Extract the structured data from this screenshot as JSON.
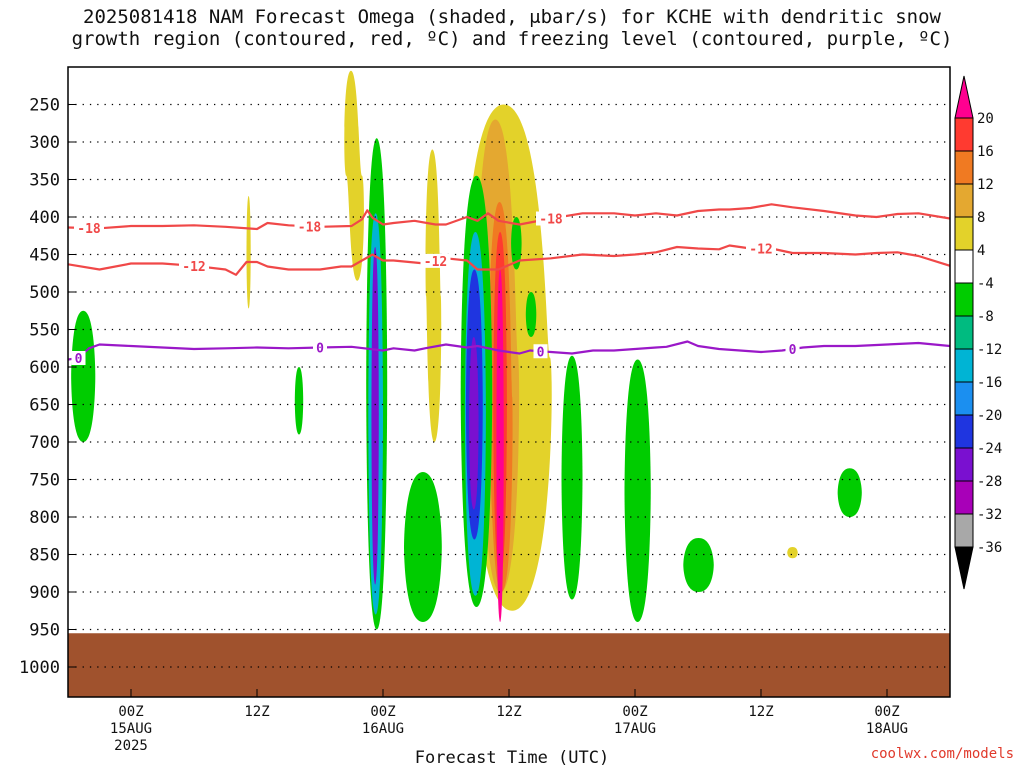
{
  "title_line1": "2025081418 NAM Forecast Omega (shaded, μbar/s) for KCHE with dendritic snow",
  "title_line2": "growth region (contoured, red, ºC) and freezing level (contoured, purple, ºC)",
  "credit": "coolwx.com/models",
  "chart_data": {
    "type": "time-height contour",
    "xlabel": "Forecast Time (UTC)",
    "ylabel": "",
    "x_ticks": [
      {
        "hour": 6,
        "l1": "00Z",
        "l2": "15AUG",
        "l3": "2025"
      },
      {
        "hour": 18,
        "l1": "12Z",
        "l2": "",
        "l3": ""
      },
      {
        "hour": 30,
        "l1": "00Z",
        "l2": "16AUG",
        "l3": ""
      },
      {
        "hour": 42,
        "l1": "12Z",
        "l2": "",
        "l3": ""
      },
      {
        "hour": 54,
        "l1": "00Z",
        "l2": "17AUG",
        "l3": ""
      },
      {
        "hour": 66,
        "l1": "12Z",
        "l2": "",
        "l3": ""
      },
      {
        "hour": 78,
        "l1": "00Z",
        "l2": "18AUG",
        "l3": ""
      }
    ],
    "xlim": [
      0,
      84
    ],
    "y_ticks": [
      250,
      300,
      350,
      400,
      450,
      500,
      550,
      600,
      650,
      700,
      750,
      800,
      850,
      900,
      950,
      1000
    ],
    "ylim": [
      200,
      1040
    ],
    "ground_level_hpa": 955,
    "colorbar": {
      "labels": [
        "20",
        "16",
        "12",
        "8",
        "4",
        "-4",
        "-8",
        "-12",
        "-16",
        "-20",
        "-24",
        "-28",
        "-32",
        "-36"
      ],
      "colors": [
        "#ff0090",
        "#ff3a30",
        "#f07a22",
        "#e4a830",
        "#e3d22a",
        "#ffffff",
        "#00cc00",
        "#00bb80",
        "#00b4d4",
        "#1b8ff0",
        "#1f35e0",
        "#7a10d0",
        "#a800b8",
        "#a8a8a8",
        "#000000"
      ]
    },
    "contours": [
      {
        "label": "-18",
        "color": "#f04848",
        "label_hours": [
          2,
          23,
          46
        ],
        "points": [
          [
            0,
            414
          ],
          [
            3,
            415
          ],
          [
            6,
            412
          ],
          [
            9,
            412
          ],
          [
            12,
            411
          ],
          [
            15,
            413
          ],
          [
            18,
            416
          ],
          [
            19,
            408
          ],
          [
            21,
            411
          ],
          [
            24,
            413
          ],
          [
            27,
            412
          ],
          [
            28,
            403
          ],
          [
            28.5,
            391
          ],
          [
            29,
            401
          ],
          [
            30,
            410
          ],
          [
            31,
            408
          ],
          [
            33,
            405
          ],
          [
            35,
            410
          ],
          [
            36,
            410
          ],
          [
            38,
            400
          ],
          [
            39,
            405
          ],
          [
            40,
            395
          ],
          [
            41,
            405
          ],
          [
            43,
            410
          ],
          [
            46,
            402
          ],
          [
            49,
            395
          ],
          [
            52,
            395
          ],
          [
            54,
            398
          ],
          [
            56,
            395
          ],
          [
            58,
            398
          ],
          [
            60,
            392
          ],
          [
            62,
            390
          ],
          [
            63,
            390
          ],
          [
            65,
            388
          ],
          [
            67,
            383
          ],
          [
            69,
            387
          ],
          [
            72,
            392
          ],
          [
            75,
            398
          ],
          [
            77,
            400
          ],
          [
            79,
            396
          ],
          [
            81,
            395
          ],
          [
            84,
            402
          ]
        ]
      },
      {
        "label": "-12",
        "color": "#f04848",
        "label_hours": [
          12,
          35,
          66
        ],
        "points": [
          [
            0,
            463
          ],
          [
            3,
            470
          ],
          [
            6,
            462
          ],
          [
            9,
            462
          ],
          [
            12,
            465
          ],
          [
            15,
            470
          ],
          [
            16,
            477
          ],
          [
            17,
            460
          ],
          [
            18,
            460
          ],
          [
            19,
            466
          ],
          [
            21,
            470
          ],
          [
            24,
            470
          ],
          [
            26,
            466
          ],
          [
            27,
            466
          ],
          [
            28,
            458
          ],
          [
            29,
            450
          ],
          [
            30,
            458
          ],
          [
            31,
            458
          ],
          [
            34,
            462
          ],
          [
            36,
            455
          ],
          [
            38,
            458
          ],
          [
            39,
            470
          ],
          [
            41,
            470
          ],
          [
            43,
            458
          ],
          [
            46,
            455
          ],
          [
            49,
            450
          ],
          [
            52,
            452
          ],
          [
            54,
            450
          ],
          [
            56,
            447
          ],
          [
            58,
            440
          ],
          [
            60,
            442
          ],
          [
            62,
            443
          ],
          [
            63,
            438
          ],
          [
            65,
            442
          ],
          [
            67,
            442
          ],
          [
            69,
            448
          ],
          [
            72,
            448
          ],
          [
            75,
            450
          ],
          [
            77,
            448
          ],
          [
            79,
            447
          ],
          [
            81,
            452
          ],
          [
            84,
            465
          ]
        ]
      },
      {
        "label": "0",
        "color": "#9a18c8",
        "label_hours": [
          1,
          24,
          45,
          69
        ],
        "points": [
          [
            0,
            590
          ],
          [
            1,
            588
          ],
          [
            2,
            575
          ],
          [
            3,
            570
          ],
          [
            6,
            572
          ],
          [
            9,
            574
          ],
          [
            12,
            576
          ],
          [
            15,
            575
          ],
          [
            18,
            574
          ],
          [
            21,
            575
          ],
          [
            24,
            574
          ],
          [
            27,
            573
          ],
          [
            30,
            578
          ],
          [
            31,
            575
          ],
          [
            33,
            578
          ],
          [
            34,
            575
          ],
          [
            36,
            570
          ],
          [
            38,
            574
          ],
          [
            39,
            572
          ],
          [
            41,
            578
          ],
          [
            43,
            582
          ],
          [
            44,
            578
          ],
          [
            46,
            580
          ],
          [
            48,
            582
          ],
          [
            50,
            578
          ],
          [
            52,
            578
          ],
          [
            54,
            576
          ],
          [
            56,
            574
          ],
          [
            57,
            573
          ],
          [
            59,
            566
          ],
          [
            60,
            572
          ],
          [
            62,
            576
          ],
          [
            64,
            578
          ],
          [
            66,
            580
          ],
          [
            68,
            578
          ],
          [
            70,
            574
          ],
          [
            72,
            572
          ],
          [
            75,
            572
          ],
          [
            78,
            570
          ],
          [
            81,
            568
          ],
          [
            84,
            572
          ]
        ]
      }
    ],
    "shaded_regions": [
      {
        "value": "4",
        "x0": 26.2,
        "x1": 27.7,
        "p0": 205,
        "p1": 485,
        "tilt": 0.6
      },
      {
        "value": "4",
        "x0": 17.0,
        "x1": 17.4,
        "p0": 372,
        "p1": 522,
        "tilt": 0
      },
      {
        "value": "4",
        "x0": 34.0,
        "x1": 35.4,
        "p0": 310,
        "p1": 700,
        "tilt": 0.2
      },
      {
        "value": "4",
        "x0": 37.5,
        "x1": 45.5,
        "p0": 250,
        "p1": 925,
        "tilt": 0.8
      },
      {
        "value": "8",
        "x0": 38.8,
        "x1": 42.6,
        "p0": 270,
        "p1": 900,
        "tilt": 0.5
      },
      {
        "value": "12",
        "x0": 40.0,
        "x1": 42.2,
        "p0": 380,
        "p1": 900,
        "tilt": 0.2
      },
      {
        "value": "16",
        "x0": 40.5,
        "x1": 41.8,
        "p0": 420,
        "p1": 880,
        "tilt": 0
      },
      {
        "value": "20",
        "x0": 40.8,
        "x1": 41.5,
        "p0": 470,
        "p1": 940,
        "tilt": 0
      },
      {
        "value": "-8",
        "x0": 0.3,
        "x1": 2.6,
        "p0": 525,
        "p1": 700,
        "tilt": 0
      },
      {
        "value": "-8",
        "x0": 21.6,
        "x1": 22.4,
        "p0": 600,
        "p1": 690,
        "tilt": 0
      },
      {
        "value": "-8",
        "x0": 28.4,
        "x1": 30.4,
        "p0": 295,
        "p1": 950,
        "tilt": 0
      },
      {
        "value": "-16",
        "x0": 28.6,
        "x1": 30.0,
        "p0": 395,
        "p1": 930,
        "tilt": 0
      },
      {
        "value": "-28",
        "x0": 28.9,
        "x1": 29.6,
        "p0": 440,
        "p1": 890,
        "tilt": 0
      },
      {
        "value": "-8",
        "x0": 32.0,
        "x1": 35.6,
        "p0": 740,
        "p1": 940,
        "tilt": 0
      },
      {
        "value": "-8",
        "x0": 37.4,
        "x1": 40.4,
        "p0": 345,
        "p1": 920,
        "tilt": 0
      },
      {
        "value": "-16",
        "x0": 37.8,
        "x1": 39.8,
        "p0": 420,
        "p1": 905,
        "tilt": 0
      },
      {
        "value": "-24",
        "x0": 37.9,
        "x1": 39.5,
        "p0": 470,
        "p1": 830,
        "tilt": 0
      },
      {
        "value": "-28",
        "x0": 38.2,
        "x1": 39.1,
        "p0": 560,
        "p1": 790,
        "tilt": 0
      },
      {
        "value": "-8",
        "x0": 42.2,
        "x1": 43.2,
        "p0": 400,
        "p1": 470,
        "tilt": 0
      },
      {
        "value": "-8",
        "x0": 43.6,
        "x1": 44.6,
        "p0": 500,
        "p1": 560,
        "tilt": 0
      },
      {
        "value": "-8",
        "x0": 47.0,
        "x1": 49.0,
        "p0": 585,
        "p1": 910,
        "tilt": 0
      },
      {
        "value": "-8",
        "x0": 53.0,
        "x1": 55.5,
        "p0": 590,
        "p1": 940,
        "tilt": 0
      },
      {
        "value": "-8",
        "x0": 58.6,
        "x1": 61.5,
        "p0": 828,
        "p1": 900,
        "tilt": 0
      },
      {
        "value": "-8",
        "x0": 73.3,
        "x1": 75.6,
        "p0": 735,
        "p1": 800,
        "tilt": 0
      },
      {
        "value": "4",
        "x0": 68.5,
        "x1": 69.5,
        "p0": 840,
        "p1": 855,
        "tilt": 0
      }
    ]
  }
}
